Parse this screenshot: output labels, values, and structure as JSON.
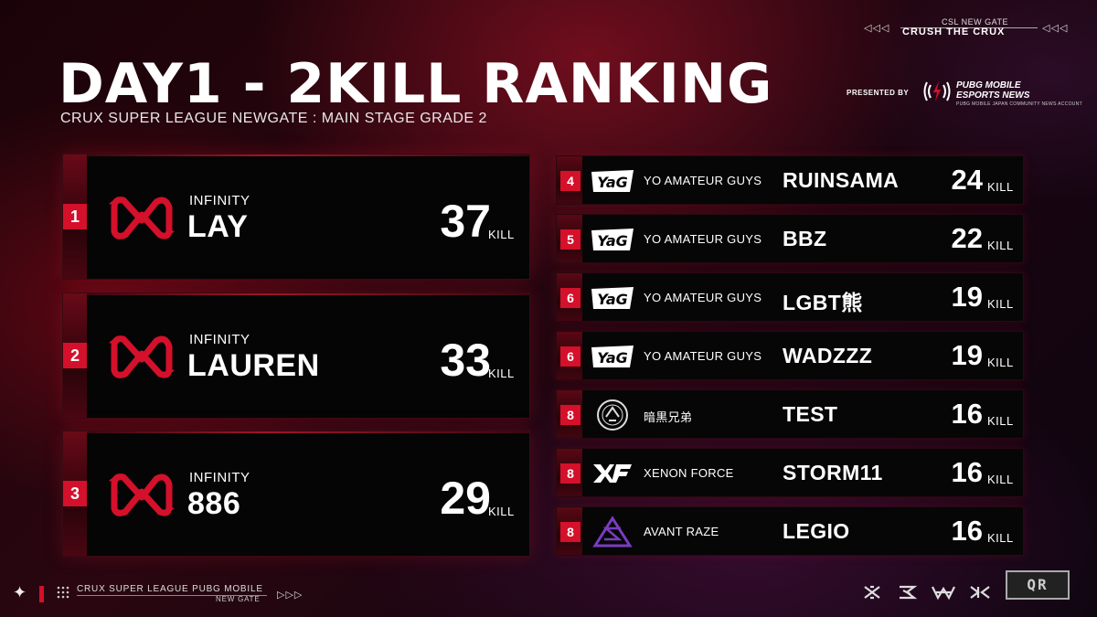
{
  "header": {
    "title": "DAY1 - 2KILL RANKING",
    "subtitle": "CRUX SUPER LEAGUE NEWGATE : MAIN STAGE GRADE 2",
    "presented_by": "PRESENTED BY",
    "sponsor_name_line1": "PUBG MOBILE",
    "sponsor_name_line2": "ESPORTS NEWS",
    "sponsor_sub": "PUBG MOBILE JAPAN COMMUNITY NEWS ACCOUNT",
    "tag_line1": "CSL NEW GATE",
    "tag_line2": "CRUSH THE CRUX",
    "tag_arrows_left": "◁◁◁",
    "tag_arrows_right": "◁◁◁"
  },
  "top3": [
    {
      "rank": "1",
      "team": "INFINITY",
      "player": "LAY",
      "kills": "37",
      "kill_label": "KILL",
      "logo": "infinity-logo"
    },
    {
      "rank": "2",
      "team": "INFINITY",
      "player": "LAUREN",
      "kills": "33",
      "kill_label": "KILL",
      "logo": "infinity-logo"
    },
    {
      "rank": "3",
      "team": "INFINITY",
      "player": "886",
      "kills": "29",
      "kill_label": "KILL",
      "logo": "infinity-logo"
    }
  ],
  "rows": [
    {
      "rank": "4",
      "team": "YO AMATEUR GUYS",
      "player": "RUINSAMA",
      "kills": "24",
      "kill_label": "KILL",
      "logo": "yag-logo"
    },
    {
      "rank": "5",
      "team": "YO AMATEUR GUYS",
      "player": "BBZ",
      "kills": "22",
      "kill_label": "KILL",
      "logo": "yag-logo"
    },
    {
      "rank": "6",
      "team": "YO AMATEUR GUYS",
      "player": "LGBT熊",
      "kills": "19",
      "kill_label": "KILL",
      "logo": "yag-logo"
    },
    {
      "rank": "6",
      "team": "YO AMATEUR GUYS",
      "player": "WADZZZ",
      "kills": "19",
      "kill_label": "KILL",
      "logo": "yag-logo"
    },
    {
      "rank": "8",
      "team": "暗黒兄弟",
      "player": "TEST",
      "kills": "16",
      "kill_label": "KILL",
      "logo": "ankoku-emblem"
    },
    {
      "rank": "8",
      "team": "XENON FORCE",
      "player": "STORM11",
      "kills": "16",
      "kill_label": "KILL",
      "logo": "xf-logo"
    },
    {
      "rank": "8",
      "team": "AVANT RAZE",
      "player": "LEGIO",
      "kills": "16",
      "kill_label": "KILL",
      "logo": "avant-raze-logo"
    }
  ],
  "footer": {
    "line1": "CRUX SUPER LEAGUE PUBG MOBILE",
    "line2": "NEW GATE",
    "arrows": "▷▷▷",
    "star": "✦",
    "qr_text": "QR"
  },
  "colors": {
    "accent_red": "#d4102a",
    "card_bg": "#050506",
    "background": "#1a0308"
  }
}
